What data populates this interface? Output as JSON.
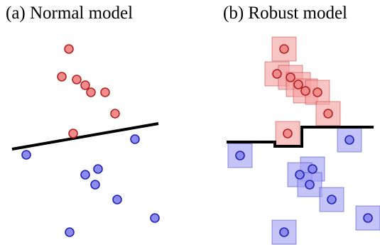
{
  "panels": [
    {
      "id": "a",
      "title": "(a) Normal model",
      "boundary": "linear"
    },
    {
      "id": "b",
      "title": "(b) Robust model",
      "boundary": "step",
      "perturbation_boxes": true
    }
  ],
  "classes": {
    "positive": {
      "fill": "#f08c8c",
      "box_fill": "#f5a0a0",
      "stroke": "#b22222"
    },
    "negative": {
      "fill": "#8c8cf0",
      "box_fill": "#a0a0f5",
      "stroke": "#2222b2"
    }
  },
  "points": {
    "positive_count": 9,
    "negative_count": 9
  }
}
